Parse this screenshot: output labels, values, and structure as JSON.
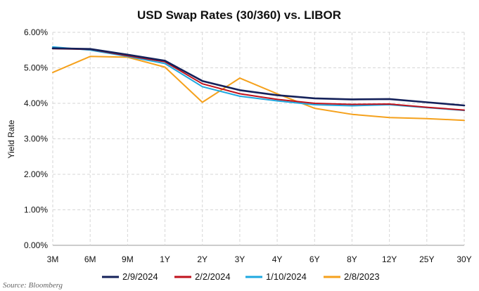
{
  "chart_data": {
    "type": "line",
    "title": "USD Swap Rates (30/360) vs. LIBOR",
    "ylabel": "Yield Rate",
    "xlabel": "",
    "categories": [
      "3M",
      "6M",
      "9M",
      "1Y",
      "2Y",
      "3Y",
      "4Y",
      "6Y",
      "8Y",
      "12Y",
      "25Y",
      "30Y"
    ],
    "ylim": [
      0,
      6
    ],
    "yticks": [
      "0.00%",
      "1.00%",
      "2.00%",
      "3.00%",
      "4.00%",
      "5.00%",
      "6.00%"
    ],
    "grid": true,
    "legend_placement": "bottom",
    "series": [
      {
        "name": "2/9/2024",
        "color": "#14215a",
        "values": [
          5.55,
          5.53,
          5.37,
          5.2,
          4.63,
          4.37,
          4.23,
          4.14,
          4.11,
          4.12,
          4.03,
          3.94
        ]
      },
      {
        "name": "2/2/2024",
        "color": "#c0121c",
        "values": [
          5.54,
          5.52,
          5.34,
          5.17,
          4.55,
          4.27,
          4.11,
          4.0,
          3.97,
          3.98,
          3.89,
          3.81
        ]
      },
      {
        "name": "1/10/2024",
        "color": "#1ea8e0",
        "values": [
          5.59,
          5.5,
          5.32,
          5.12,
          4.47,
          4.2,
          4.07,
          3.96,
          3.93,
          3.96,
          3.88,
          3.8
        ]
      },
      {
        "name": "2/8/2023",
        "color": "#f5a11c",
        "values": [
          4.87,
          5.32,
          5.3,
          5.02,
          4.03,
          4.71,
          4.27,
          3.86,
          3.69,
          3.6,
          3.57,
          3.52
        ]
      }
    ]
  },
  "source": "Source: Bloomberg"
}
